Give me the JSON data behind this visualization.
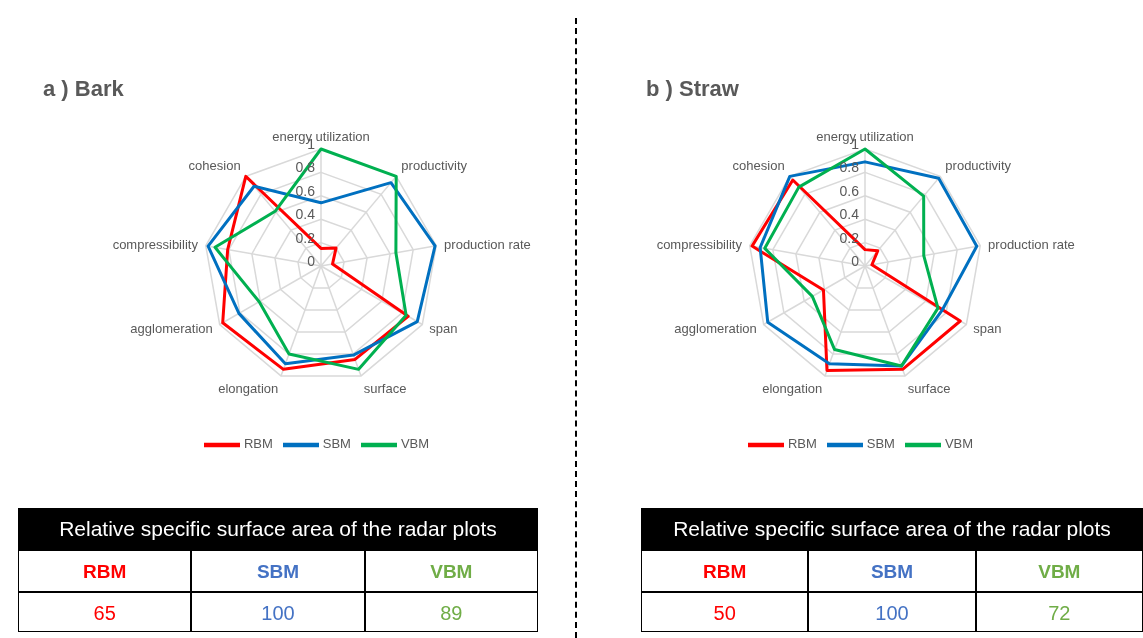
{
  "chart_data": [
    {
      "type": "radar",
      "title": "a ) Bark",
      "categories": [
        "energy utilization",
        "productivity",
        "production rate",
        "span",
        "surface",
        "elongation",
        "agglomeration",
        "compressibility",
        "cohesion"
      ],
      "ylim": [
        0,
        1
      ],
      "yticks": [
        0,
        0.2,
        0.4,
        0.6,
        0.8,
        1
      ],
      "grid": true,
      "legend": "bottom",
      "marker": "none",
      "series": [
        {
          "name": "RBM",
          "color": "#ff0000",
          "values": [
            0.15,
            0.2,
            0.1,
            0.86,
            0.85,
            0.94,
            0.97,
            0.81,
            1.0
          ]
        },
        {
          "name": "SBM",
          "color": "#0070c0",
          "values": [
            0.54,
            0.93,
            0.99,
            0.95,
            0.81,
            0.89,
            0.81,
            0.98,
            0.89
          ]
        },
        {
          "name": "VBM",
          "color": "#00b050",
          "values": [
            1.0,
            1.0,
            0.65,
            0.84,
            0.94,
            0.8,
            0.61,
            0.92,
            0.61
          ]
        }
      ]
    },
    {
      "type": "other",
      "title": "Relative specific surface area of the radar plots",
      "categories": [
        "RBM",
        "SBM",
        "VBM"
      ],
      "values": [
        65,
        100,
        89
      ],
      "data_labels": true,
      "colors": [
        "#ff0000",
        "#4472c4",
        "#70ad47"
      ]
    },
    {
      "type": "radar",
      "title": "b ) Straw",
      "categories": [
        "energy utilization",
        "productivity",
        "production rate",
        "span",
        "surface",
        "elongation",
        "agglomeration",
        "compressibility",
        "cohesion"
      ],
      "ylim": [
        0,
        1
      ],
      "yticks": [
        0,
        0.2,
        0.4,
        0.6,
        0.8,
        1
      ],
      "grid": true,
      "legend": "bottom",
      "marker": "none",
      "series": [
        {
          "name": "RBM",
          "color": "#ff0000",
          "values": [
            0.14,
            0.17,
            0.06,
            0.94,
            0.94,
            0.95,
            0.41,
            0.98,
            0.96
          ]
        },
        {
          "name": "SBM",
          "color": "#0070c0",
          "values": [
            0.89,
            0.98,
            0.97,
            0.76,
            0.91,
            0.89,
            0.96,
            0.91,
            1.0
          ]
        },
        {
          "name": "VBM",
          "color": "#00b050",
          "values": [
            1.0,
            0.78,
            0.51,
            0.72,
            0.91,
            0.76,
            0.52,
            0.87,
            0.88
          ]
        }
      ]
    },
    {
      "type": "other",
      "title": "Relative specific surface area of the radar plots",
      "categories": [
        "RBM",
        "SBM",
        "VBM"
      ],
      "values": [
        50,
        100,
        72
      ],
      "data_labels": true,
      "colors": [
        "#ff0000",
        "#4472c4",
        "#70ad47"
      ]
    }
  ]
}
